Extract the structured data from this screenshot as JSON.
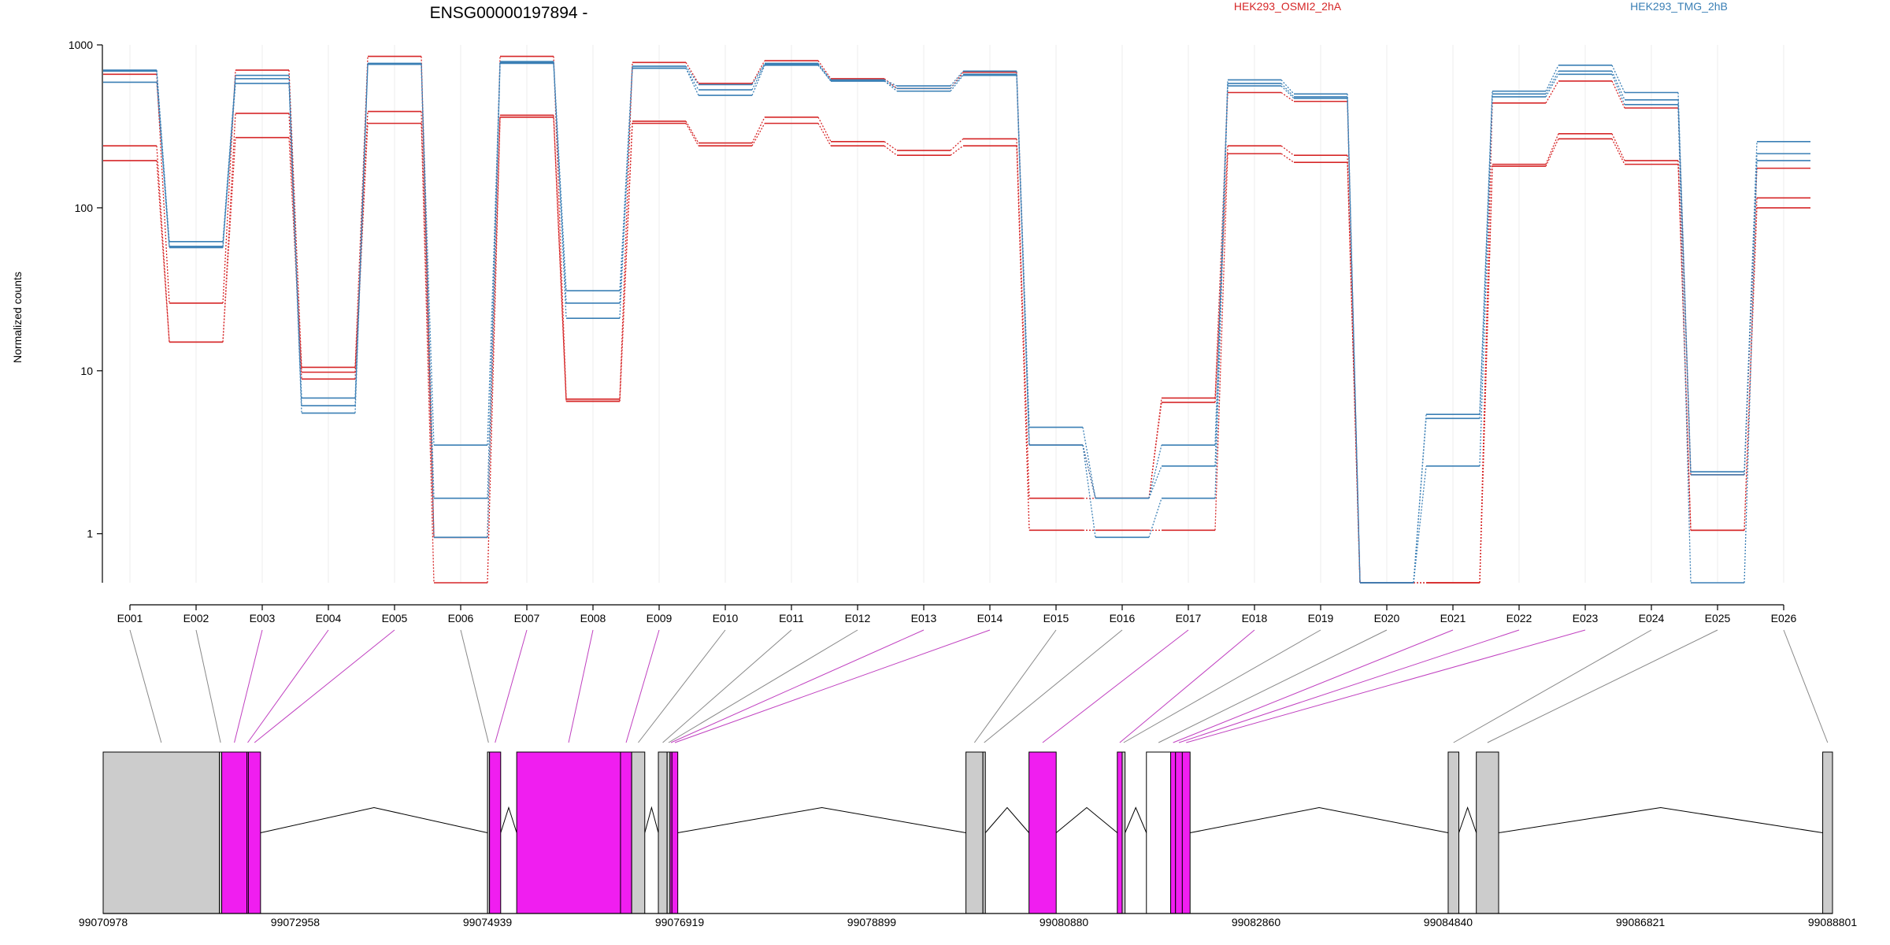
{
  "chart_data": {
    "type": "line",
    "title": "ENSG00000197894 -",
    "ylabel": "Normalized counts",
    "xlabel": "",
    "yscale": "log",
    "ylim": [
      0.5,
      1000
    ],
    "y_ticks": [
      1,
      10,
      100,
      1000
    ],
    "y_tick_labels": [
      "1",
      "10",
      "100",
      "1000"
    ],
    "legend": [
      {
        "label": "HEK293_OSMI2_2hA",
        "color": "#d62728"
      },
      {
        "label": "HEK293_TMG_2hB",
        "color": "#3a7fb5"
      }
    ],
    "colors": {
      "red": "#d62728",
      "blue": "#3a7fb5",
      "magenta": "#f01ef0",
      "grey": "#cccccc"
    },
    "categories": [
      "E001",
      "E002",
      "E003",
      "E004",
      "E005",
      "E006",
      "E007",
      "E008",
      "E009",
      "E010",
      "E011",
      "E012",
      "E013",
      "E014",
      "E015",
      "E016",
      "E017",
      "E018",
      "E019",
      "E020",
      "E021",
      "E022",
      "E023",
      "E024",
      "E025",
      "E026"
    ],
    "series": [
      {
        "group": "HEK293_OSMI2_2hA",
        "values": [
          660,
          26,
          700,
          10.5,
          850,
          0.95,
          850,
          6.7,
          780,
          580,
          800,
          620,
          540,
          680,
          3.5,
          1.65,
          6.8,
          510,
          450,
          0.5,
          0.5,
          440,
          600,
          410,
          2.3,
          175
        ]
      },
      {
        "group": "HEK293_OSMI2_2hA",
        "values": [
          240,
          15,
          380,
          9.8,
          390,
          0.95,
          370,
          6.5,
          340,
          250,
          360,
          255,
          225,
          265,
          1.65,
          1.65,
          6.4,
          240,
          210,
          0.5,
          0.5,
          185,
          285,
          195,
          1.05,
          115
        ]
      },
      {
        "group": "HEK293_OSMI2_2hA",
        "values": [
          195,
          15,
          270,
          8.9,
          330,
          0.5,
          360,
          6.5,
          330,
          240,
          330,
          240,
          210,
          240,
          1.05,
          1.05,
          1.05,
          215,
          190,
          0.5,
          0.5,
          180,
          265,
          185,
          1.05,
          100
        ]
      },
      {
        "group": "HEK293_TMG_2hB",
        "values": [
          700,
          62,
          650,
          6.8,
          770,
          3.5,
          790,
          31,
          740,
          570,
          770,
          610,
          560,
          690,
          4.5,
          1.65,
          3.5,
          610,
          500,
          0.5,
          5.4,
          520,
          750,
          510,
          2.4,
          255
        ]
      },
      {
        "group": "HEK293_TMG_2hB",
        "values": [
          690,
          58,
          620,
          6.1,
          760,
          1.65,
          780,
          26,
          720,
          530,
          760,
          600,
          540,
          660,
          3.5,
          1.65,
          2.6,
          580,
          480,
          0.5,
          5.1,
          500,
          690,
          460,
          2.3,
          215
        ]
      },
      {
        "group": "HEK293_TMG_2hB",
        "values": [
          590,
          57,
          580,
          5.5,
          760,
          0.95,
          770,
          21,
          720,
          490,
          750,
          600,
          520,
          650,
          3.5,
          0.95,
          1.65,
          560,
          470,
          0.5,
          2.6,
          480,
          660,
          430,
          0.5,
          195
        ]
      }
    ],
    "gene_model": {
      "coordinate_labels": [
        "99070978",
        "99072958",
        "99074939",
        "99076919",
        "99078899",
        "99080880",
        "99082860",
        "99084840",
        "99086821",
        "99088801"
      ],
      "coord_range": [
        99070978,
        99088801
      ],
      "coordinate_ticks": [
        99070978,
        99072958,
        99074939,
        99076919,
        99078899,
        99080880,
        99082860,
        99084840,
        99086821,
        99088801
      ],
      "exon_bins": [
        {
          "id": "E001",
          "start": 99070978,
          "end": 99072176,
          "color": "grey"
        },
        {
          "id": "E002",
          "start": 99072176,
          "end": 99072200,
          "color": "grey"
        },
        {
          "id": "E003",
          "start": 99072200,
          "end": 99072460,
          "color": "magenta"
        },
        {
          "id": "E004",
          "start": 99072460,
          "end": 99072475,
          "color": "magenta"
        },
        {
          "id": "E005",
          "start": 99072475,
          "end": 99072600,
          "color": "magenta"
        },
        {
          "id": "E006",
          "start": 99074939,
          "end": 99074960,
          "color": "grey"
        },
        {
          "id": "E007",
          "start": 99074960,
          "end": 99075075,
          "color": "magenta"
        },
        {
          "id": "E008",
          "start": 99075240,
          "end": 99076310,
          "color": "magenta"
        },
        {
          "id": "E009",
          "start": 99076310,
          "end": 99076425,
          "color": "magenta"
        },
        {
          "id": "E010",
          "start": 99076425,
          "end": 99076560,
          "color": "grey"
        },
        {
          "id": "E011",
          "start": 99076700,
          "end": 99076790,
          "color": "grey"
        },
        {
          "id": "E012",
          "start": 99076790,
          "end": 99076820,
          "color": "grey"
        },
        {
          "id": "E013",
          "start": 99076820,
          "end": 99076840,
          "color": "magenta"
        },
        {
          "id": "E014",
          "start": 99076840,
          "end": 99076900,
          "color": "magenta"
        },
        {
          "id": "E015",
          "start": 99079870,
          "end": 99080045,
          "color": "grey"
        },
        {
          "id": "E016",
          "start": 99080045,
          "end": 99080070,
          "color": "grey"
        },
        {
          "id": "E017",
          "start": 99080520,
          "end": 99080800,
          "color": "magenta"
        },
        {
          "id": "E018",
          "start": 99081430,
          "end": 99081480,
          "color": "magenta"
        },
        {
          "id": "E019",
          "start": 99081480,
          "end": 99081510,
          "color": "grey"
        },
        {
          "id": "E020",
          "start": 99081730,
          "end": 99081980,
          "color": "white"
        },
        {
          "id": "E021",
          "start": 99081980,
          "end": 99082030,
          "color": "magenta"
        },
        {
          "id": "E022",
          "start": 99082030,
          "end": 99082100,
          "color": "magenta"
        },
        {
          "id": "E023",
          "start": 99082100,
          "end": 99082180,
          "color": "magenta"
        },
        {
          "id": "E024",
          "start": 99084840,
          "end": 99084950,
          "color": "grey"
        },
        {
          "id": "E025",
          "start": 99085130,
          "end": 99085360,
          "color": "grey"
        },
        {
          "id": "E026",
          "start": 99088700,
          "end": 99088801,
          "color": "grey"
        }
      ]
    }
  }
}
